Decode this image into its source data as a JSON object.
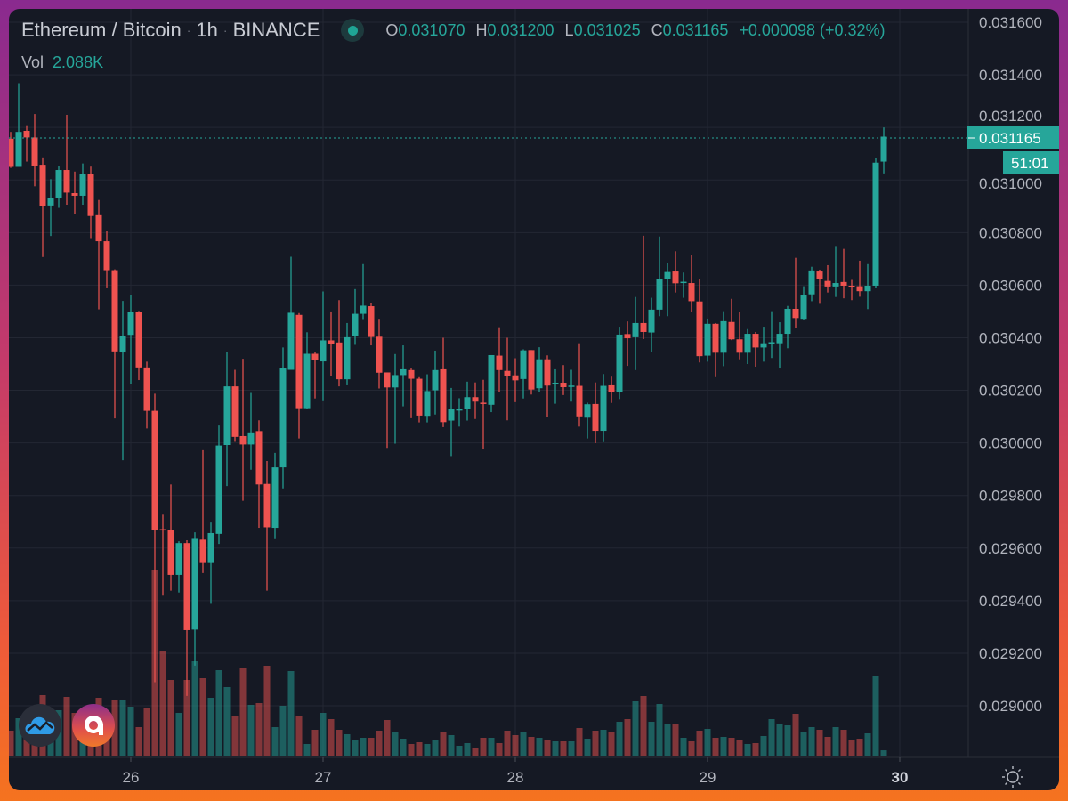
{
  "header": {
    "symbol": "Ethereum / Bitcoin",
    "interval": "1h",
    "exchange": "BINANCE",
    "sep": "·",
    "ohlc": [
      {
        "key": "O",
        "value": "0.031070"
      },
      {
        "key": "H",
        "value": "0.031200"
      },
      {
        "key": "L",
        "value": "0.031025"
      },
      {
        "key": "C",
        "value": "0.031165"
      }
    ],
    "change": "+0.000098 (+0.32%)",
    "vol_label": "Vol",
    "vol_value": "2.088K"
  },
  "price_tag": {
    "value": "0.031165",
    "countdown": "51:01"
  },
  "colors": {
    "up": "#26a69a",
    "down": "#ef5350",
    "background": "#151924",
    "grid": "#232733",
    "text": "#b2b5be"
  },
  "icons": [
    "cloud-chart-logo-icon",
    "letter-a-app-icon",
    "settings-sun-icon"
  ],
  "chart_data": {
    "type": "candlestick",
    "title": "Ethereum / Bitcoin · 1h · BINANCE",
    "ylim": [
      0.02882,
      0.0316
    ],
    "price_ticks": [
      "0.031600",
      "0.031400",
      "0.031200",
      "0.031000",
      "0.030800",
      "0.030600",
      "0.030400",
      "0.030200",
      "0.030000",
      "0.029800",
      "0.029600",
      "0.029400",
      "0.029200",
      "0.029000"
    ],
    "day_ticks": [
      {
        "label": "26",
        "index": 15
      },
      {
        "label": "27",
        "index": 39
      },
      {
        "label": "28",
        "index": 63
      },
      {
        "label": "29",
        "index": 87
      },
      {
        "label": "30",
        "index": 111,
        "bold": true
      }
    ],
    "current_price": 0.031165,
    "volume_unit": "K",
    "candles_ohlc_x1e6": [
      [
        31157,
        31183,
        31046,
        31050
      ],
      [
        31050,
        31368,
        31050,
        31183
      ],
      [
        31187,
        31205,
        31070,
        31162
      ],
      [
        31162,
        31251,
        30976,
        31055
      ],
      [
        31058,
        31086,
        30707,
        30901
      ],
      [
        30903,
        31003,
        30787,
        30933
      ],
      [
        30932,
        31052,
        30894,
        31038
      ],
      [
        31038,
        31248,
        30906,
        30952
      ],
      [
        30950,
        31032,
        30869,
        30940
      ],
      [
        30940,
        31063,
        30906,
        31022
      ],
      [
        31022,
        31051,
        30779,
        30863
      ],
      [
        30866,
        30924,
        30508,
        30767
      ],
      [
        30767,
        30807,
        30588,
        30657
      ],
      [
        30657,
        30660,
        30093,
        30348
      ],
      [
        30344,
        30540,
        29934,
        30408
      ],
      [
        30411,
        30563,
        30224,
        30497
      ],
      [
        30497,
        30502,
        30239,
        30287
      ],
      [
        30287,
        30309,
        30055,
        30122
      ],
      [
        30122,
        30187,
        29090,
        29670
      ],
      [
        29672,
        29727,
        29419,
        29668
      ],
      [
        29670,
        29842,
        29438,
        29498
      ],
      [
        29498,
        29626,
        29431,
        29619
      ],
      [
        29619,
        29630,
        29038,
        29288
      ],
      [
        29290,
        29660,
        29153,
        29635
      ],
      [
        29632,
        29972,
        29505,
        29543
      ],
      [
        29543,
        29697,
        29388,
        29657
      ],
      [
        29654,
        30066,
        29616,
        29990
      ],
      [
        29992,
        30345,
        29836,
        30215
      ],
      [
        30215,
        30278,
        30004,
        30023
      ],
      [
        30026,
        30320,
        29780,
        29994
      ],
      [
        29994,
        30190,
        29898,
        30040
      ],
      [
        30045,
        30086,
        29677,
        29842
      ],
      [
        29844,
        29931,
        29438,
        29679
      ],
      [
        29677,
        29962,
        29634,
        29907
      ],
      [
        29907,
        30363,
        29827,
        30284
      ],
      [
        30278,
        30708,
        30278,
        30495
      ],
      [
        30487,
        30494,
        30017,
        30132
      ],
      [
        30132,
        30421,
        30128,
        30339
      ],
      [
        30339,
        30347,
        30169,
        30315
      ],
      [
        30310,
        30576,
        30162,
        30390
      ],
      [
        30390,
        30500,
        30254,
        30376
      ],
      [
        30382,
        30543,
        30215,
        30242
      ],
      [
        30242,
        30456,
        30219,
        30402
      ],
      [
        30407,
        30585,
        30373,
        30491
      ],
      [
        30491,
        30680,
        30471,
        30522
      ],
      [
        30520,
        30533,
        30371,
        30403
      ],
      [
        30404,
        30472,
        30207,
        30267
      ],
      [
        30268,
        30268,
        29981,
        30211
      ],
      [
        30211,
        30338,
        29997,
        30258
      ],
      [
        30258,
        30371,
        30139,
        30280
      ],
      [
        30277,
        30283,
        30094,
        30244
      ],
      [
        30244,
        30250,
        30078,
        30104
      ],
      [
        30103,
        30261,
        30078,
        30197
      ],
      [
        30200,
        30351,
        30108,
        30277
      ],
      [
        30280,
        30400,
        30060,
        30079
      ],
      [
        30085,
        30209,
        29950,
        30130
      ],
      [
        30124,
        30170,
        30062,
        30128
      ],
      [
        30129,
        30233,
        30085,
        30174
      ],
      [
        30174,
        30230,
        30091,
        30157
      ],
      [
        30153,
        30240,
        29975,
        30149
      ],
      [
        30145,
        30334,
        30117,
        30334
      ],
      [
        30332,
        30440,
        30195,
        30277
      ],
      [
        30274,
        30400,
        30086,
        30256
      ],
      [
        30257,
        30322,
        30155,
        30238
      ],
      [
        30243,
        30356,
        30169,
        30352
      ],
      [
        30353,
        30353,
        30184,
        30203
      ],
      [
        30208,
        30364,
        30192,
        30318
      ],
      [
        30318,
        30333,
        30098,
        30218
      ],
      [
        30224,
        30280,
        30149,
        30229
      ],
      [
        30229,
        30296,
        30182,
        30212
      ],
      [
        30214,
        30278,
        30157,
        30218
      ],
      [
        30217,
        30379,
        30062,
        30101
      ],
      [
        30096,
        30153,
        30017,
        30147
      ],
      [
        30148,
        30230,
        29999,
        30046
      ],
      [
        30046,
        30262,
        30003,
        30217
      ],
      [
        30219,
        30252,
        30152,
        30192
      ],
      [
        30192,
        30442,
        30167,
        30412
      ],
      [
        30414,
        30462,
        30293,
        30398
      ],
      [
        30402,
        30555,
        30277,
        30456
      ],
      [
        30456,
        30788,
        30395,
        30422
      ],
      [
        30420,
        30552,
        30347,
        30507
      ],
      [
        30507,
        30785,
        30482,
        30625
      ],
      [
        30625,
        30686,
        30482,
        30650
      ],
      [
        30652,
        30729,
        30572,
        30607
      ],
      [
        30608,
        30648,
        30552,
        30613
      ],
      [
        30608,
        30713,
        30499,
        30539
      ],
      [
        30538,
        30625,
        30306,
        30330
      ],
      [
        30332,
        30473,
        30309,
        30453
      ],
      [
        30453,
        30456,
        30250,
        30343
      ],
      [
        30343,
        30501,
        30292,
        30463
      ],
      [
        30460,
        30548,
        30391,
        30394
      ],
      [
        30394,
        30498,
        30318,
        30343
      ],
      [
        30343,
        30433,
        30300,
        30415
      ],
      [
        30415,
        30422,
        30290,
        30363
      ],
      [
        30363,
        30442,
        30309,
        30379
      ],
      [
        30379,
        30501,
        30323,
        30383
      ],
      [
        30379,
        30459,
        30283,
        30415
      ],
      [
        30415,
        30521,
        30360,
        30510
      ],
      [
        30510,
        30704,
        30437,
        30475
      ],
      [
        30472,
        30596,
        30467,
        30561
      ],
      [
        30565,
        30670,
        30539,
        30656
      ],
      [
        30652,
        30659,
        30529,
        30623
      ],
      [
        30616,
        30676,
        30572,
        30595
      ],
      [
        30595,
        30749,
        30555,
        30608
      ],
      [
        30612,
        30738,
        30550,
        30598
      ],
      [
        30598,
        30620,
        30543,
        30594
      ],
      [
        30596,
        30693,
        30556,
        30577
      ],
      [
        30577,
        30680,
        30509,
        30598
      ],
      [
        30598,
        31085,
        30588,
        31066
      ],
      [
        31070,
        31200,
        31025,
        31165
      ]
    ],
    "volumes_k": [
      8.7,
      12.9,
      6.0,
      5.1,
      20.7,
      9.0,
      15.6,
      20.1,
      14.7,
      12.0,
      10.5,
      19.8,
      13.5,
      19.2,
      19.2,
      16.8,
      9.9,
      16.2,
      63.0,
      35.4,
      25.8,
      14.7,
      25.8,
      32.1,
      26.4,
      19.8,
      29.1,
      23.4,
      13.5,
      29.7,
      17.4,
      18.0,
      30.6,
      9.9,
      17.1,
      28.8,
      13.8,
      4.2,
      9.0,
      14.7,
      12.6,
      9.0,
      7.5,
      5.7,
      6.3,
      6.3,
      8.7,
      12.3,
      8.1,
      6.0,
      4.2,
      4.8,
      4.2,
      5.7,
      8.1,
      7.2,
      3.6,
      4.5,
      2.7,
      6.3,
      6.3,
      4.5,
      8.7,
      7.2,
      8.1,
      6.6,
      6.3,
      5.7,
      5.1,
      5.1,
      5.1,
      9.6,
      6.0,
      8.7,
      9.0,
      8.4,
      11.7,
      12.6,
      18.6,
      20.4,
      11.7,
      17.7,
      11.1,
      10.8,
      6.3,
      5.1,
      8.7,
      9.3,
      6.3,
      6.6,
      6.3,
      5.4,
      4.2,
      4.5,
      6.9,
      12.6,
      10.8,
      10.5,
      14.4,
      8.1,
      9.9,
      9.0,
      6.6,
      9.9,
      9.0,
      5.4,
      6.0,
      7.8,
      27.0,
      2.088
    ]
  }
}
